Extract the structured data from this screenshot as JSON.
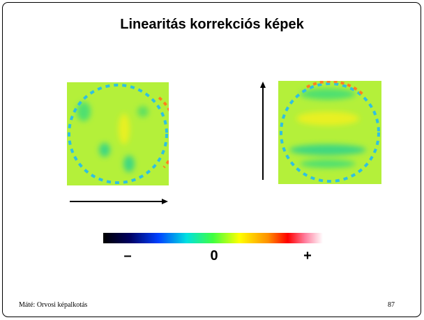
{
  "header": {
    "title": "Linearitás korrekciós képek"
  },
  "colorbar": {
    "labels": [
      "–",
      "0",
      "+"
    ]
  },
  "footer": {
    "author": "Máté: Orvosi képalkotás",
    "page": "87"
  }
}
